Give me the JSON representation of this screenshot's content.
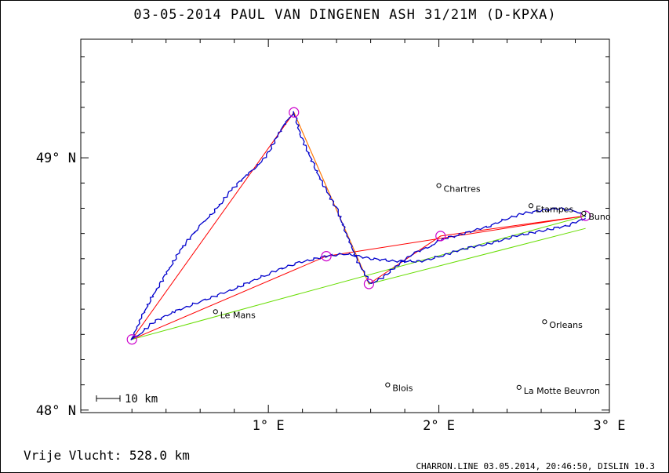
{
  "chart_data": {
    "type": "line",
    "title": "03-05-2014   PAUL VAN DINGENEN   ASH 31/21M (D-KPXA)",
    "x_axis": {
      "min": -0.1,
      "max": 3.0,
      "unit": "°E",
      "ticks": [
        {
          "value": 1,
          "label": "1° E"
        },
        {
          "value": 2,
          "label": "2° E"
        },
        {
          "value": 3,
          "label": "3° E"
        }
      ]
    },
    "y_axis": {
      "min": 47.99,
      "max": 49.47,
      "unit": "°N",
      "ticks": [
        {
          "value": 48,
          "label": "48° N"
        },
        {
          "value": 49,
          "label": "49° N"
        }
      ]
    },
    "grid": false,
    "cities": [
      {
        "name": "Chartres",
        "lon": 2.0,
        "lat": 48.89
      },
      {
        "name": "Etampes",
        "lon": 2.54,
        "lat": 48.81
      },
      {
        "name": "Buno",
        "lon": 2.85,
        "lat": 48.78
      },
      {
        "name": "Le Mans",
        "lon": 0.69,
        "lat": 48.39
      },
      {
        "name": "Orleans",
        "lon": 2.62,
        "lat": 48.35
      },
      {
        "name": "Blois",
        "lon": 1.7,
        "lat": 48.1
      },
      {
        "name": "La Motte Beuvron",
        "lon": 2.47,
        "lat": 48.09
      }
    ],
    "turnpoints": [
      {
        "lon": 0.2,
        "lat": 48.28
      },
      {
        "lon": 1.15,
        "lat": 49.18
      },
      {
        "lon": 1.59,
        "lat": 48.5
      },
      {
        "lon": 1.34,
        "lat": 48.61
      },
      {
        "lon": 2.01,
        "lat": 48.69
      },
      {
        "lon": 2.86,
        "lat": 48.77
      }
    ],
    "series": [
      {
        "color": "#0000cc",
        "points": [
          [
            2.86,
            48.77
          ],
          [
            2.8,
            48.79
          ],
          [
            2.7,
            48.8
          ],
          [
            2.6,
            48.79
          ],
          [
            2.5,
            48.78
          ],
          [
            2.4,
            48.76
          ],
          [
            2.3,
            48.73
          ],
          [
            2.2,
            48.71
          ],
          [
            2.1,
            48.69
          ],
          [
            2.02,
            48.68
          ],
          [
            1.95,
            48.65
          ],
          [
            1.85,
            48.62
          ],
          [
            1.75,
            48.57
          ],
          [
            1.68,
            48.53
          ],
          [
            1.6,
            48.5
          ],
          [
            1.53,
            48.58
          ],
          [
            1.48,
            48.66
          ],
          [
            1.44,
            48.73
          ],
          [
            1.4,
            48.8
          ],
          [
            1.33,
            48.88
          ],
          [
            1.26,
            48.98
          ],
          [
            1.19,
            49.09
          ],
          [
            1.15,
            49.18
          ],
          [
            1.09,
            49.13
          ],
          [
            1.05,
            49.08
          ],
          [
            1.0,
            49.02
          ],
          [
            0.94,
            48.97
          ],
          [
            0.87,
            48.93
          ],
          [
            0.78,
            48.87
          ],
          [
            0.7,
            48.8
          ],
          [
            0.6,
            48.73
          ],
          [
            0.5,
            48.65
          ],
          [
            0.4,
            48.54
          ],
          [
            0.32,
            48.45
          ],
          [
            0.25,
            48.36
          ],
          [
            0.2,
            48.28
          ],
          [
            0.26,
            48.31
          ],
          [
            0.33,
            48.35
          ],
          [
            0.45,
            48.39
          ],
          [
            0.6,
            48.43
          ],
          [
            0.8,
            48.48
          ],
          [
            1.0,
            48.54
          ],
          [
            1.15,
            48.58
          ],
          [
            1.34,
            48.61
          ],
          [
            1.45,
            48.62
          ],
          [
            1.6,
            48.6
          ],
          [
            1.75,
            48.59
          ],
          [
            1.9,
            48.59
          ],
          [
            2.01,
            48.61
          ],
          [
            2.15,
            48.64
          ],
          [
            2.3,
            48.66
          ],
          [
            2.45,
            48.69
          ],
          [
            2.6,
            48.71
          ],
          [
            2.75,
            48.73
          ],
          [
            2.86,
            48.76
          ]
        ]
      }
    ],
    "course": [
      {
        "color": "#ff0000",
        "points": [
          [
            0.2,
            48.28
          ],
          [
            1.15,
            49.18
          ],
          [
            1.59,
            48.5
          ],
          [
            2.01,
            48.69
          ],
          [
            2.86,
            48.77
          ],
          [
            1.34,
            48.61
          ],
          [
            0.2,
            48.28
          ]
        ]
      },
      {
        "color": "#ff8800",
        "points": [
          [
            1.15,
            49.18
          ],
          [
            1.59,
            48.5
          ]
        ]
      },
      {
        "color": "#66dd00",
        "points": [
          [
            0.2,
            48.28
          ],
          [
            2.86,
            48.77
          ]
        ]
      },
      {
        "color": "#66dd00",
        "points": [
          [
            1.59,
            48.5
          ],
          [
            2.86,
            48.72
          ]
        ]
      }
    ],
    "turnpoint_color": "#cc00cc",
    "scale_bar_label": "10 km"
  },
  "footer": {
    "distance_text": "Vrije Vlucht:  528.0 km",
    "credit_text": "CHARRON.LINE 03.05.2014, 20:46:50, DISLIN 10.3"
  }
}
